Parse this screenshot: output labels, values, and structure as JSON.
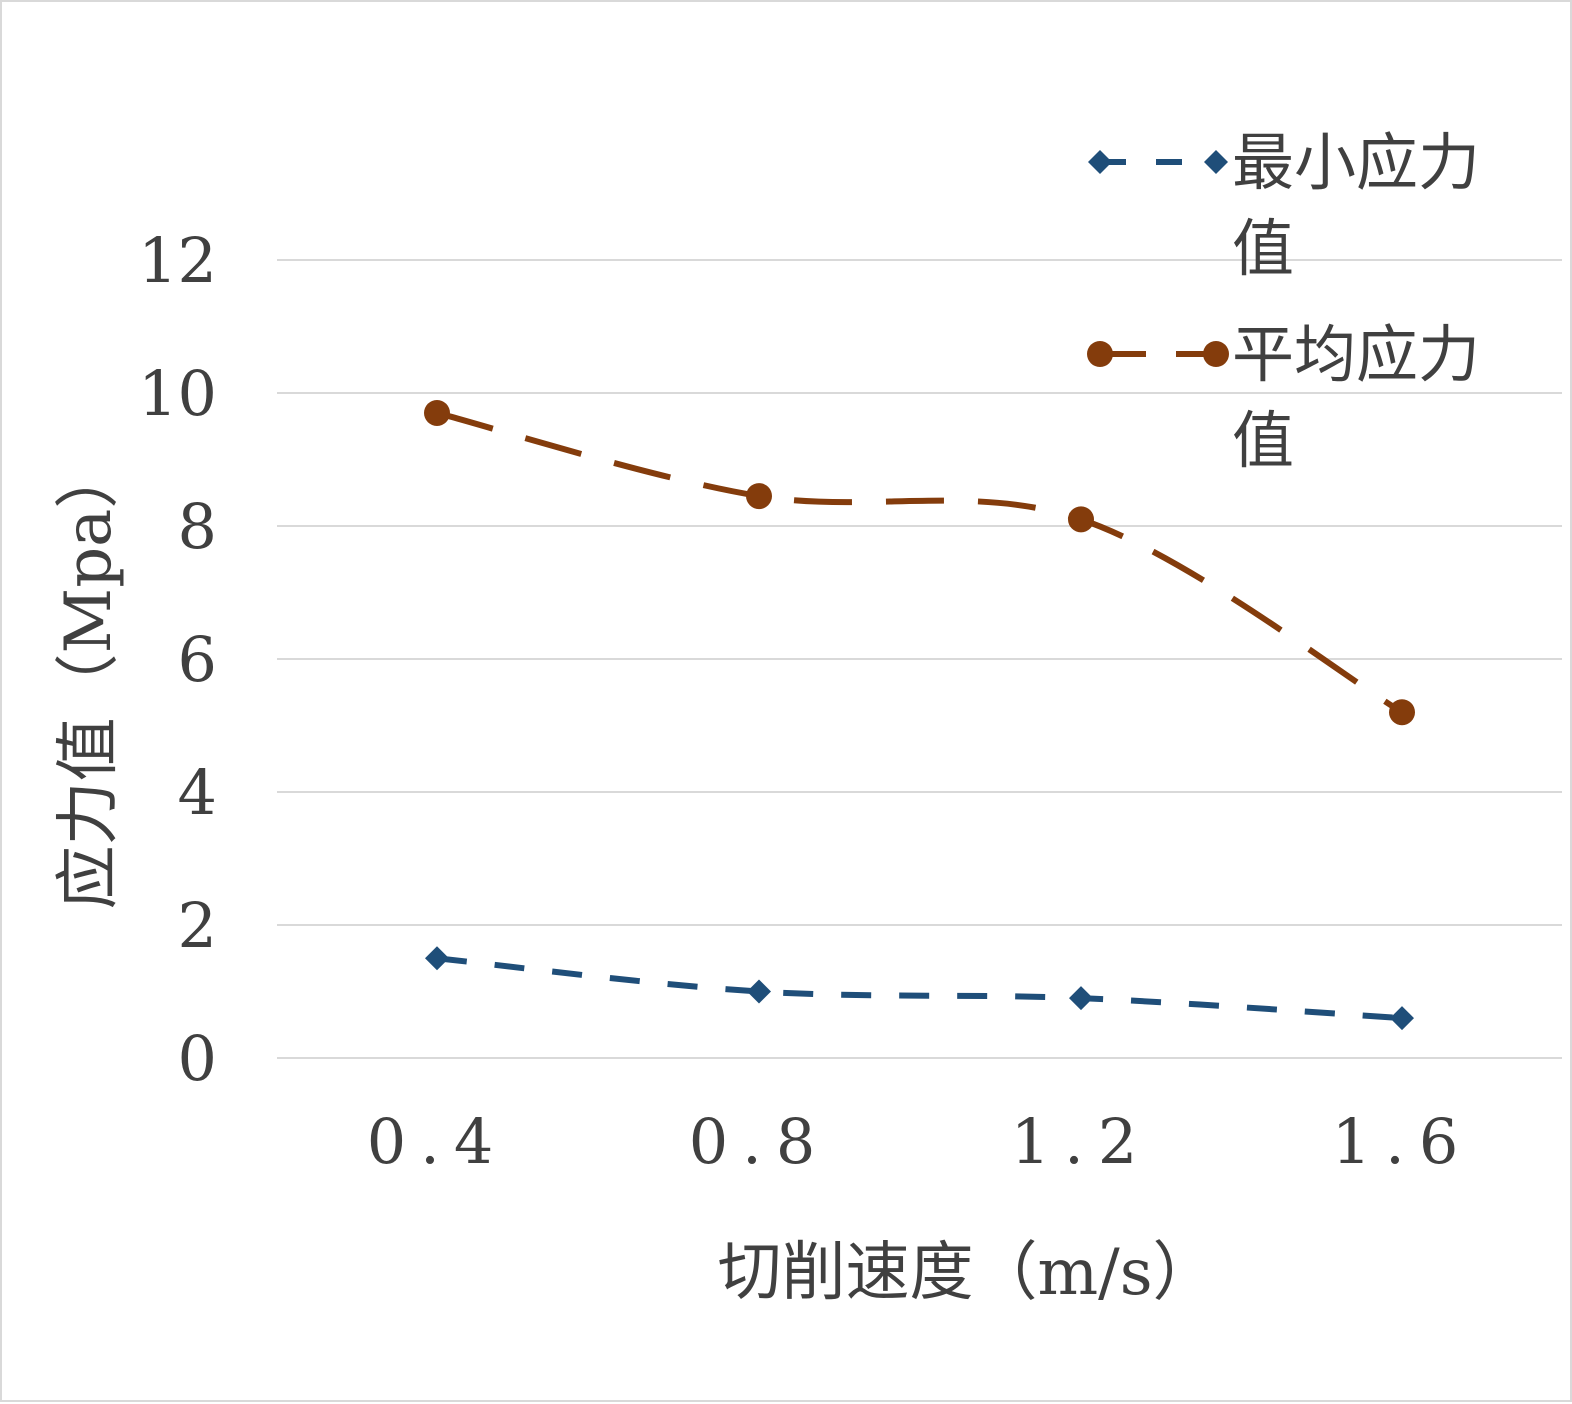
{
  "chart_data": {
    "type": "line",
    "title": "",
    "xlabel": "切削速度（m/s）",
    "ylabel": "应力值（Mpa）",
    "categories": [
      "0.4",
      "0.8",
      "1.2",
      "1.6"
    ],
    "ylim": [
      0,
      12
    ],
    "yticks": [
      0,
      2,
      4,
      6,
      8,
      10,
      12
    ],
    "grid": true,
    "legend_position": "top-right",
    "smooth": true,
    "series": [
      {
        "name_lines": [
          "最小应力",
          "值"
        ],
        "values": [
          1.5,
          1.0,
          0.9,
          0.6
        ],
        "color": "#1f4e79",
        "marker": "diamond",
        "line_style": "dashed"
      },
      {
        "name_lines": [
          "平均应力",
          "值"
        ],
        "values": [
          9.7,
          8.45,
          8.1,
          5.2
        ],
        "color": "#843c0c",
        "marker": "circle",
        "line_style": "long-dash"
      }
    ]
  }
}
